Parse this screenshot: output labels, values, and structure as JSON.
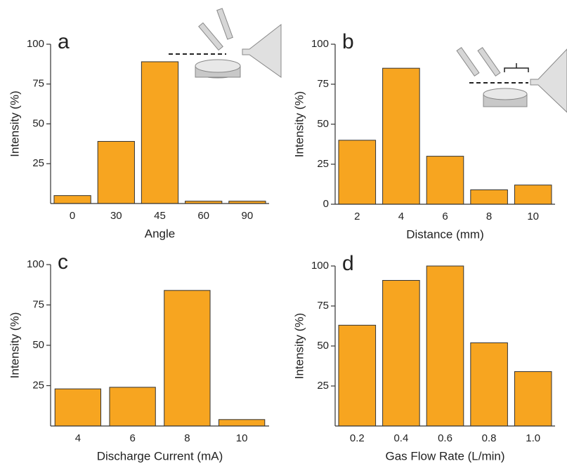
{
  "chart_data": [
    {
      "type": "bar",
      "panel_label": "a",
      "x_label": "Angle",
      "y_label": "Intensity (%)",
      "categories": [
        "0",
        "30",
        "45",
        "60",
        "90"
      ],
      "values": [
        5,
        39,
        89,
        1.5,
        1.5
      ],
      "color": "#f7a520",
      "ylim": [
        0,
        100
      ],
      "yticks": [
        25,
        50,
        75,
        100
      ]
    },
    {
      "type": "bar",
      "panel_label": "b",
      "x_label": "Distance (mm)",
      "y_label": "Intensity (%)",
      "categories": [
        "2",
        "4",
        "6",
        "8",
        "10"
      ],
      "values": [
        40,
        85,
        30,
        9,
        12
      ],
      "color": "#f7a520",
      "ylim": [
        0,
        100
      ],
      "yticks": [
        0,
        25,
        50,
        75,
        100
      ]
    },
    {
      "type": "bar",
      "panel_label": "c",
      "x_label": "Discharge Current (mA)",
      "y_label": "Intensity (%)",
      "categories": [
        "4",
        "6",
        "8",
        "10"
      ],
      "values": [
        23,
        24,
        84,
        4
      ],
      "color": "#f7a520",
      "ylim": [
        0,
        100
      ],
      "yticks": [
        25,
        50,
        75,
        100
      ]
    },
    {
      "type": "bar",
      "panel_label": "d",
      "x_label": "Gas Flow Rate (L/min)",
      "y_label": "Intensity (%)",
      "categories": [
        "0.2",
        "0.4",
        "0.6",
        "0.8",
        "1.0"
      ],
      "values": [
        63,
        91,
        100,
        52,
        34
      ],
      "color": "#f7a520",
      "ylim": [
        0,
        100
      ],
      "yticks": [
        25,
        50,
        75,
        100
      ]
    }
  ]
}
